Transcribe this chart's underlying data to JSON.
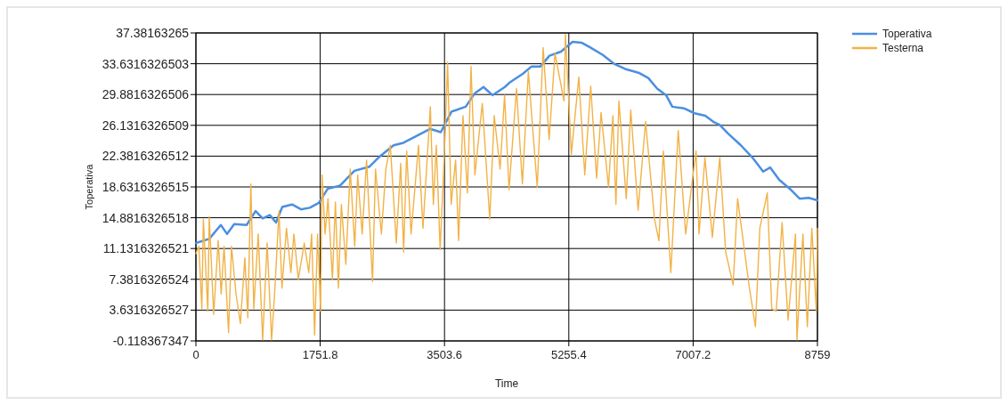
{
  "chart_data": {
    "type": "line",
    "xlabel": "Time",
    "ylabel": "Toperativa",
    "xlim": [
      0,
      8759
    ],
    "xticks": [
      0,
      1751.8,
      3503.6,
      5255.4,
      7007.2,
      8759
    ],
    "ylim": [
      -0.118367347,
      37.38163265
    ],
    "yticks": [
      -0.118367347,
      3.6316326527,
      7.3816326524,
      11.1316326521,
      14.8816326518,
      18.6316326515,
      22.3816326512,
      26.1316326509,
      29.8816326506,
      33.6316326503,
      37.38163265
    ],
    "grid": true,
    "legend": "top right",
    "series": [
      {
        "name": "Toperativa",
        "color": "#4a8fe0",
        "x": [
          0,
          188,
          351,
          439,
          540,
          715,
          841,
          941,
          1042,
          1129,
          1217,
          1355,
          1481,
          1606,
          1732,
          1857,
          2033,
          2234,
          2447,
          2573,
          2786,
          2924,
          3100,
          3300,
          3451,
          3602,
          3802,
          3928,
          4053,
          4179,
          4354,
          4430,
          4605,
          4731,
          4856,
          4982,
          5145,
          5308,
          5434,
          5559,
          5735,
          5898,
          6049,
          6249,
          6375,
          6500,
          6626,
          6714,
          6877,
          7027,
          7178,
          7304,
          7379,
          7504,
          7680,
          7843,
          7994,
          8094,
          8220,
          8383,
          8508,
          8634,
          8759
        ],
        "values": [
          11.8,
          12.3,
          14.0,
          12.9,
          14.1,
          14.0,
          15.7,
          14.8,
          15.2,
          14.3,
          16.2,
          16.5,
          15.9,
          16.1,
          16.7,
          18.4,
          18.8,
          20.6,
          21.1,
          22.2,
          23.7,
          24.0,
          24.8,
          25.7,
          25.3,
          27.8,
          28.4,
          30.0,
          30.8,
          29.8,
          30.8,
          31.4,
          32.4,
          33.3,
          33.3,
          34.6,
          35.1,
          36.3,
          36.2,
          35.6,
          34.7,
          33.6,
          33.0,
          32.5,
          31.9,
          30.6,
          29.8,
          28.4,
          28.2,
          27.6,
          27.3,
          26.5,
          26.2,
          25.1,
          23.7,
          22.2,
          20.5,
          21.0,
          19.5,
          18.3,
          17.2,
          17.3,
          17.0
        ]
      },
      {
        "name": "Testerna",
        "color": "#f2b246",
        "x": [
          0,
          42,
          84,
          105,
          168,
          188,
          251,
          314,
          356,
          397,
          460,
          502,
          565,
          627,
          690,
          732,
          774,
          816,
          878,
          941,
          1004,
          1067,
          1109,
          1171,
          1213,
          1276,
          1339,
          1381,
          1443,
          1527,
          1590,
          1631,
          1673,
          1715,
          1757,
          1778,
          1820,
          1862,
          1924,
          1966,
          2008,
          2050,
          2113,
          2175,
          2238,
          2280,
          2343,
          2405,
          2489,
          2531,
          2614,
          2677,
          2740,
          2824,
          2886,
          2928,
          2970,
          3032,
          3137,
          3200,
          3304,
          3346,
          3388,
          3442,
          3513,
          3547,
          3597,
          3660,
          3702,
          3764,
          3827,
          3877,
          3932,
          4036,
          4141,
          4204,
          4287,
          4350,
          4413,
          4518,
          4601,
          4685,
          4810,
          4894,
          4978,
          5061,
          5187,
          5208,
          5291,
          5396,
          5480,
          5564,
          5647,
          5710,
          5814,
          5877,
          5919,
          5961,
          6065,
          6128,
          6232,
          6337,
          6463,
          6525,
          6588,
          6693,
          6797,
          6902,
          7048,
          7090,
          7174,
          7278,
          7383,
          7466,
          7571,
          7634,
          7801,
          7885,
          7947,
          8052,
          8115,
          8178,
          8261,
          8345,
          8450,
          8470,
          8554,
          8617,
          8680,
          8743,
          8759
        ],
        "values": [
          10.5,
          11.4,
          3.8,
          14.7,
          3.5,
          15.0,
          3.1,
          12.1,
          5.6,
          11.4,
          0.9,
          11.4,
          5.6,
          2.0,
          10.0,
          2.7,
          19.0,
          3.8,
          12.9,
          0.0,
          11.8,
          0.0,
          5.6,
          15.7,
          6.3,
          13.6,
          8.2,
          12.9,
          7.4,
          11.8,
          8.2,
          12.9,
          0.6,
          12.9,
          3.5,
          20.1,
          12.9,
          17.2,
          7.4,
          16.8,
          6.3,
          16.5,
          9.2,
          20.8,
          11.4,
          20.1,
          12.9,
          21.9,
          7.1,
          20.8,
          12.9,
          20.8,
          23.7,
          11.8,
          21.5,
          10.7,
          23.0,
          12.9,
          23.7,
          13.6,
          28.4,
          16.5,
          23.7,
          11.0,
          25.1,
          33.8,
          16.5,
          21.9,
          12.1,
          27.3,
          17.9,
          33.3,
          20.1,
          28.8,
          14.7,
          27.3,
          20.8,
          29.8,
          18.3,
          30.6,
          19.0,
          32.7,
          18.6,
          35.6,
          24.4,
          34.9,
          29.1,
          37.2,
          22.6,
          32.0,
          20.1,
          30.9,
          19.7,
          27.7,
          18.6,
          27.3,
          16.5,
          29.1,
          17.2,
          28.0,
          15.8,
          26.6,
          14.7,
          12.1,
          23.0,
          8.2,
          25.5,
          12.9,
          23.0,
          12.9,
          22.2,
          12.5,
          22.2,
          10.7,
          6.7,
          17.2,
          6.3,
          1.6,
          13.6,
          17.9,
          3.8,
          3.5,
          14.3,
          2.4,
          12.9,
          0.0,
          12.9,
          1.6,
          13.6,
          3.5,
          13.6
        ]
      }
    ]
  }
}
